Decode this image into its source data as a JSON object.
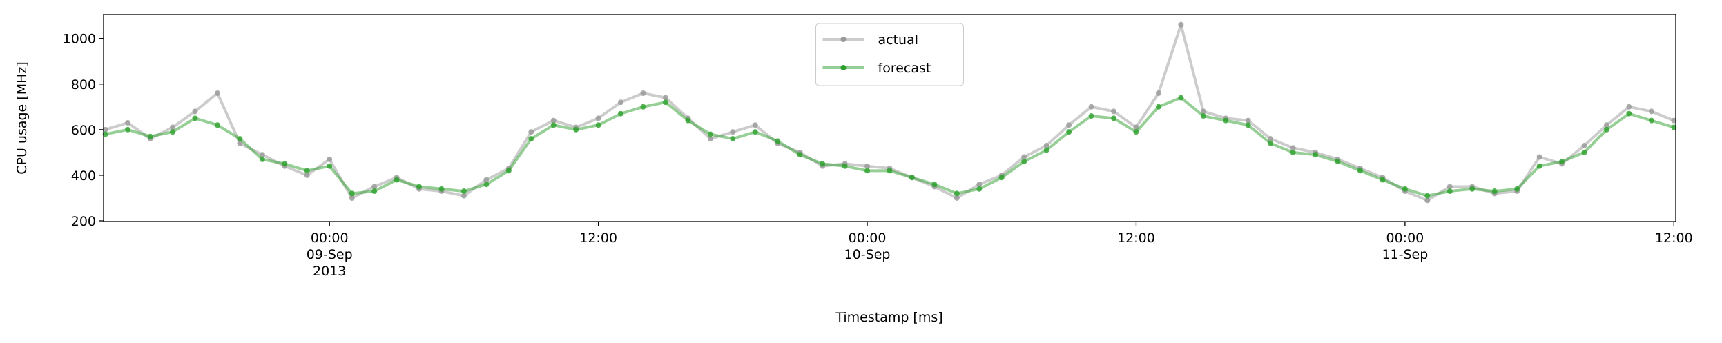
{
  "chart_data": {
    "type": "line",
    "xlabel": "Timestamp [ms]",
    "ylabel": "CPU usage [MHz]",
    "x": [
      "2013-09-08 14:00",
      "2013-09-08 15:00",
      "2013-09-08 16:00",
      "2013-09-08 17:00",
      "2013-09-08 18:00",
      "2013-09-08 19:00",
      "2013-09-08 20:00",
      "2013-09-08 21:00",
      "2013-09-08 22:00",
      "2013-09-08 23:00",
      "2013-09-09 00:00",
      "2013-09-09 01:00",
      "2013-09-09 02:00",
      "2013-09-09 03:00",
      "2013-09-09 04:00",
      "2013-09-09 05:00",
      "2013-09-09 06:00",
      "2013-09-09 07:00",
      "2013-09-09 08:00",
      "2013-09-09 09:00",
      "2013-09-09 10:00",
      "2013-09-09 11:00",
      "2013-09-09 12:00",
      "2013-09-09 13:00",
      "2013-09-09 14:00",
      "2013-09-09 15:00",
      "2013-09-09 16:00",
      "2013-09-09 17:00",
      "2013-09-09 18:00",
      "2013-09-09 19:00",
      "2013-09-09 20:00",
      "2013-09-09 21:00",
      "2013-09-09 22:00",
      "2013-09-09 23:00",
      "2013-09-10 00:00",
      "2013-09-10 01:00",
      "2013-09-10 02:00",
      "2013-09-10 03:00",
      "2013-09-10 04:00",
      "2013-09-10 05:00",
      "2013-09-10 06:00",
      "2013-09-10 07:00",
      "2013-09-10 08:00",
      "2013-09-10 09:00",
      "2013-09-10 10:00",
      "2013-09-10 11:00",
      "2013-09-10 12:00",
      "2013-09-10 13:00",
      "2013-09-10 14:00",
      "2013-09-10 15:00",
      "2013-09-10 16:00",
      "2013-09-10 17:00",
      "2013-09-10 18:00",
      "2013-09-10 19:00",
      "2013-09-10 20:00",
      "2013-09-10 21:00",
      "2013-09-10 22:00",
      "2013-09-10 23:00",
      "2013-09-11 00:00",
      "2013-09-11 01:00",
      "2013-09-11 02:00",
      "2013-09-11 03:00",
      "2013-09-11 04:00",
      "2013-09-11 05:00",
      "2013-09-11 06:00",
      "2013-09-11 07:00",
      "2013-09-11 08:00",
      "2013-09-11 09:00",
      "2013-09-11 10:00",
      "2013-09-11 11:00",
      "2013-09-11 12:00"
    ],
    "series": [
      {
        "name": "actual",
        "color": "#999999",
        "values": [
          600,
          630,
          560,
          610,
          680,
          760,
          540,
          490,
          440,
          400,
          470,
          300,
          350,
          390,
          340,
          330,
          310,
          380,
          430,
          590,
          640,
          610,
          650,
          720,
          760,
          740,
          650,
          560,
          590,
          620,
          540,
          500,
          440,
          450,
          440,
          430,
          390,
          350,
          300,
          360,
          400,
          480,
          530,
          620,
          700,
          680,
          610,
          760,
          1060,
          680,
          650,
          640,
          560,
          520,
          500,
          470,
          430,
          390,
          330,
          290,
          350,
          350,
          320,
          330,
          480,
          450,
          530,
          620,
          700,
          680,
          640
        ]
      },
      {
        "name": "forecast",
        "color": "#2ca02c",
        "values": [
          580,
          600,
          570,
          590,
          650,
          620,
          560,
          470,
          450,
          420,
          440,
          320,
          330,
          380,
          350,
          340,
          330,
          360,
          420,
          560,
          620,
          600,
          620,
          670,
          700,
          720,
          640,
          580,
          560,
          590,
          550,
          490,
          450,
          440,
          420,
          420,
          390,
          360,
          320,
          340,
          390,
          460,
          510,
          590,
          660,
          650,
          590,
          700,
          740,
          660,
          640,
          620,
          540,
          500,
          490,
          460,
          420,
          380,
          340,
          310,
          330,
          340,
          330,
          340,
          440,
          460,
          500,
          600,
          670,
          640,
          610
        ]
      }
    ],
    "xlim": [
      "2013-09-08 13:55",
      "2013-09-11 12:05"
    ],
    "xticks": [
      {
        "value": "2013-09-09 00:00",
        "label": "00:00\n09-Sep\n2013"
      },
      {
        "value": "2013-09-09 12:00",
        "label": "12:00"
      },
      {
        "value": "2013-09-10 00:00",
        "label": "00:00\n10-Sep"
      },
      {
        "value": "2013-09-10 12:00",
        "label": "12:00"
      },
      {
        "value": "2013-09-11 00:00",
        "label": "00:00\n11-Sep"
      },
      {
        "value": "2013-09-11 12:00",
        "label": "12:00"
      }
    ],
    "ylim": [
      197,
      1105
    ],
    "yticks": [
      200,
      400,
      600,
      800,
      1000
    ],
    "legend": "upper center",
    "grid": false
  }
}
